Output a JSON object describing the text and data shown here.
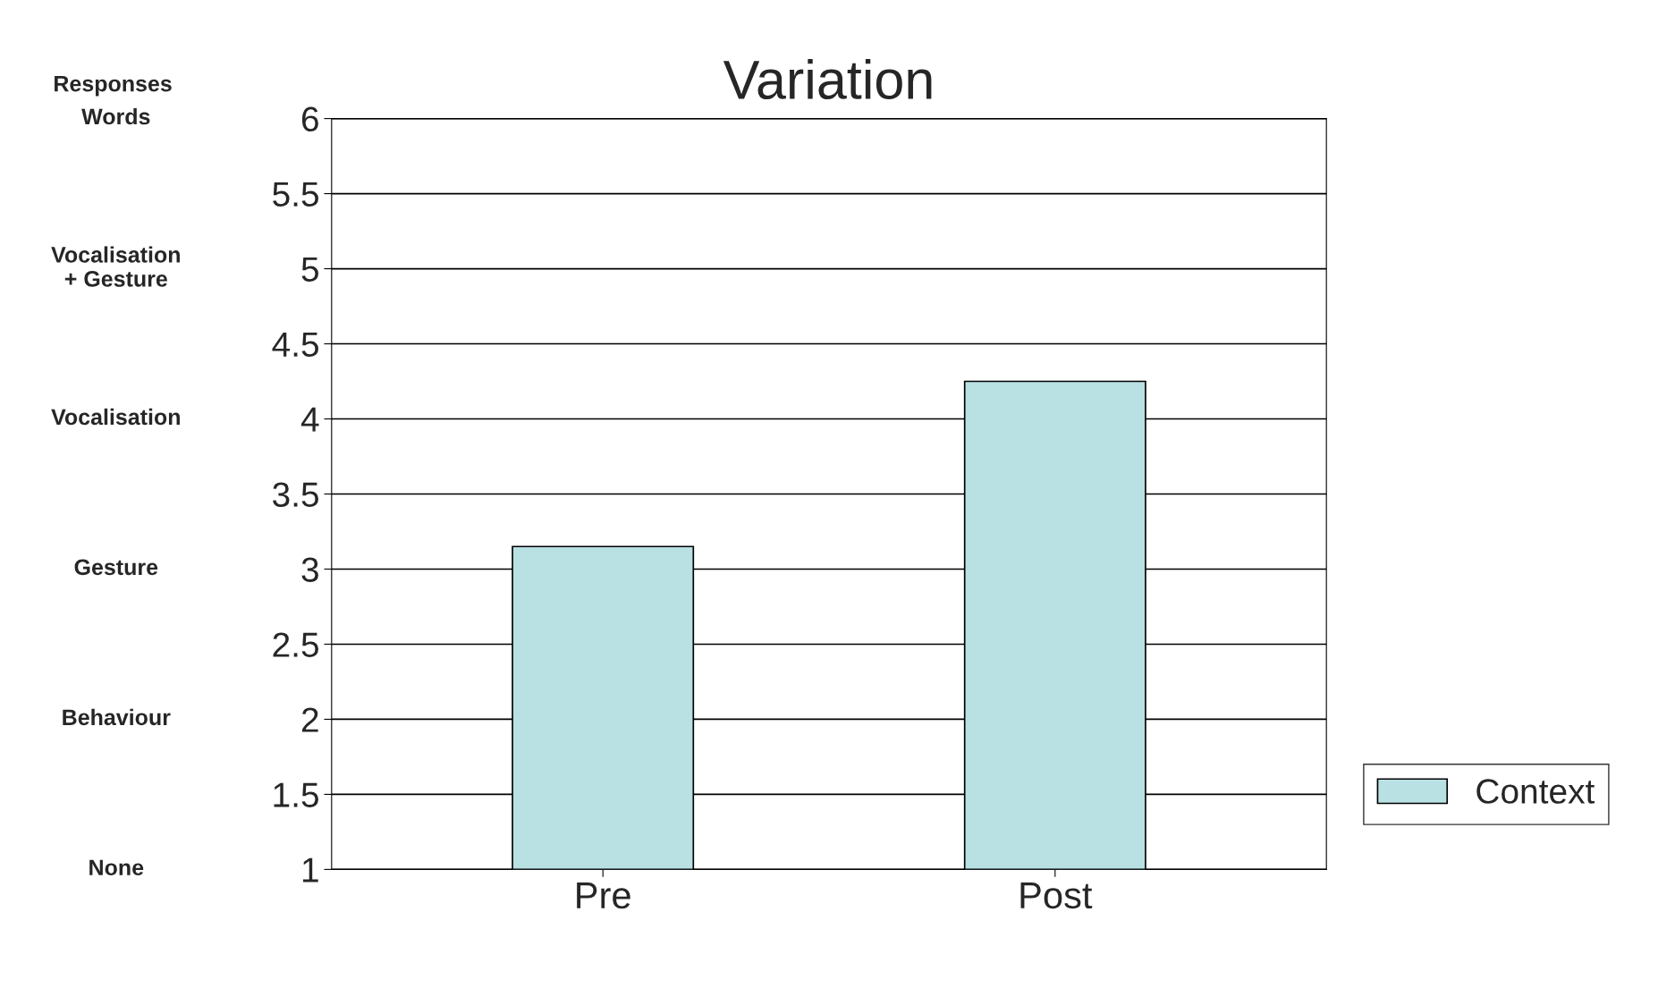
{
  "chart_data": {
    "type": "bar",
    "title": "Variation",
    "ylabel": "Responses",
    "categories": [
      "Pre",
      "Post"
    ],
    "series": [
      {
        "name": "Context",
        "color": "#b9e0e3",
        "values": [
          3.15,
          4.25
        ]
      }
    ],
    "ylim": [
      1,
      6
    ],
    "yticks": [
      1,
      1.5,
      2,
      2.5,
      3,
      3.5,
      4,
      4.5,
      5,
      5.5,
      6
    ],
    "grid": "y",
    "legend": "right",
    "annotations": [
      "Words",
      "Vocalisation\n+ Gesture",
      "Vocalisation",
      "Gesture",
      "Behaviour",
      "None"
    ]
  }
}
